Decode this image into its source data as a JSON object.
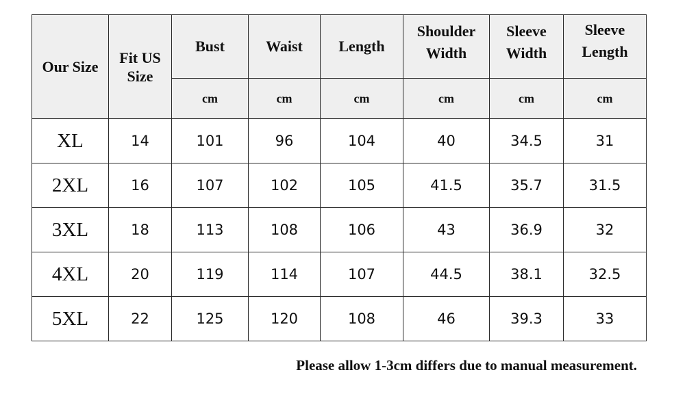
{
  "table": {
    "headers": {
      "our_size": "Our Size",
      "fit_us": "Fit US Size",
      "bust": "Bust",
      "waist": "Waist",
      "length": "Length",
      "shoulder": "Shoulder Width",
      "sleeve_width": "Sleeve Width",
      "sleeve_length": "Sleeve Length"
    },
    "units": [
      "cm",
      "cm",
      "cm",
      "cm",
      "cm",
      "cm"
    ],
    "rows": [
      [
        "XL",
        "14",
        "101",
        "96",
        "104",
        "40",
        "34.5",
        "31"
      ],
      [
        "2XL",
        "16",
        "107",
        "102",
        "105",
        "41.5",
        "35.7",
        "31.5"
      ],
      [
        "3XL",
        "18",
        "113",
        "108",
        "106",
        "43",
        "36.9",
        "32"
      ],
      [
        "4XL",
        "20",
        "119",
        "114",
        "107",
        "44.5",
        "38.1",
        "32.5"
      ],
      [
        "5XL",
        "22",
        "125",
        "120",
        "108",
        "46",
        "39.3",
        "33"
      ]
    ]
  },
  "note": "Please allow 1-3cm differs due to manual measurement."
}
